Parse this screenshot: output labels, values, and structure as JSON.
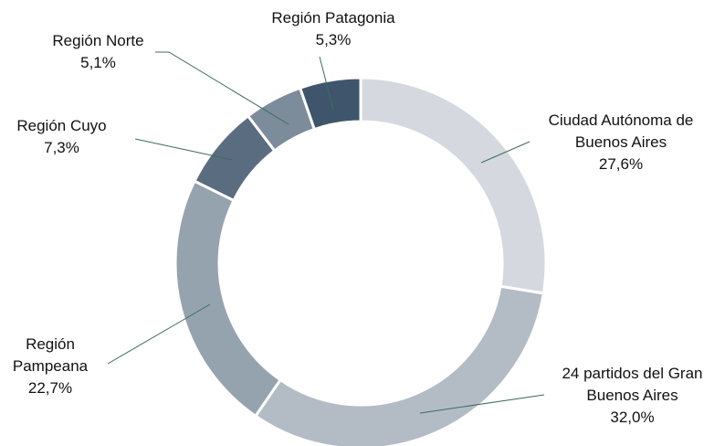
{
  "chart_data": {
    "type": "donut",
    "categories": [
      "Ciudad Autónoma de Buenos Aires",
      "24 partidos del Gran Buenos Aires",
      "Región Pampeana",
      "Región Cuyo",
      "Región Norte",
      "Región Patagonia"
    ],
    "values": [
      27.6,
      32.0,
      22.7,
      7.3,
      5.1,
      5.3
    ],
    "value_labels": [
      "27,6%",
      "32,0%",
      "22,7%",
      "7,3%",
      "5,1%",
      "5,3%"
    ],
    "colors": [
      "#d5d9df",
      "#b3bcc4",
      "#95a3ae",
      "#5a6d80",
      "#7d8c9b",
      "#3e556c"
    ]
  }
}
